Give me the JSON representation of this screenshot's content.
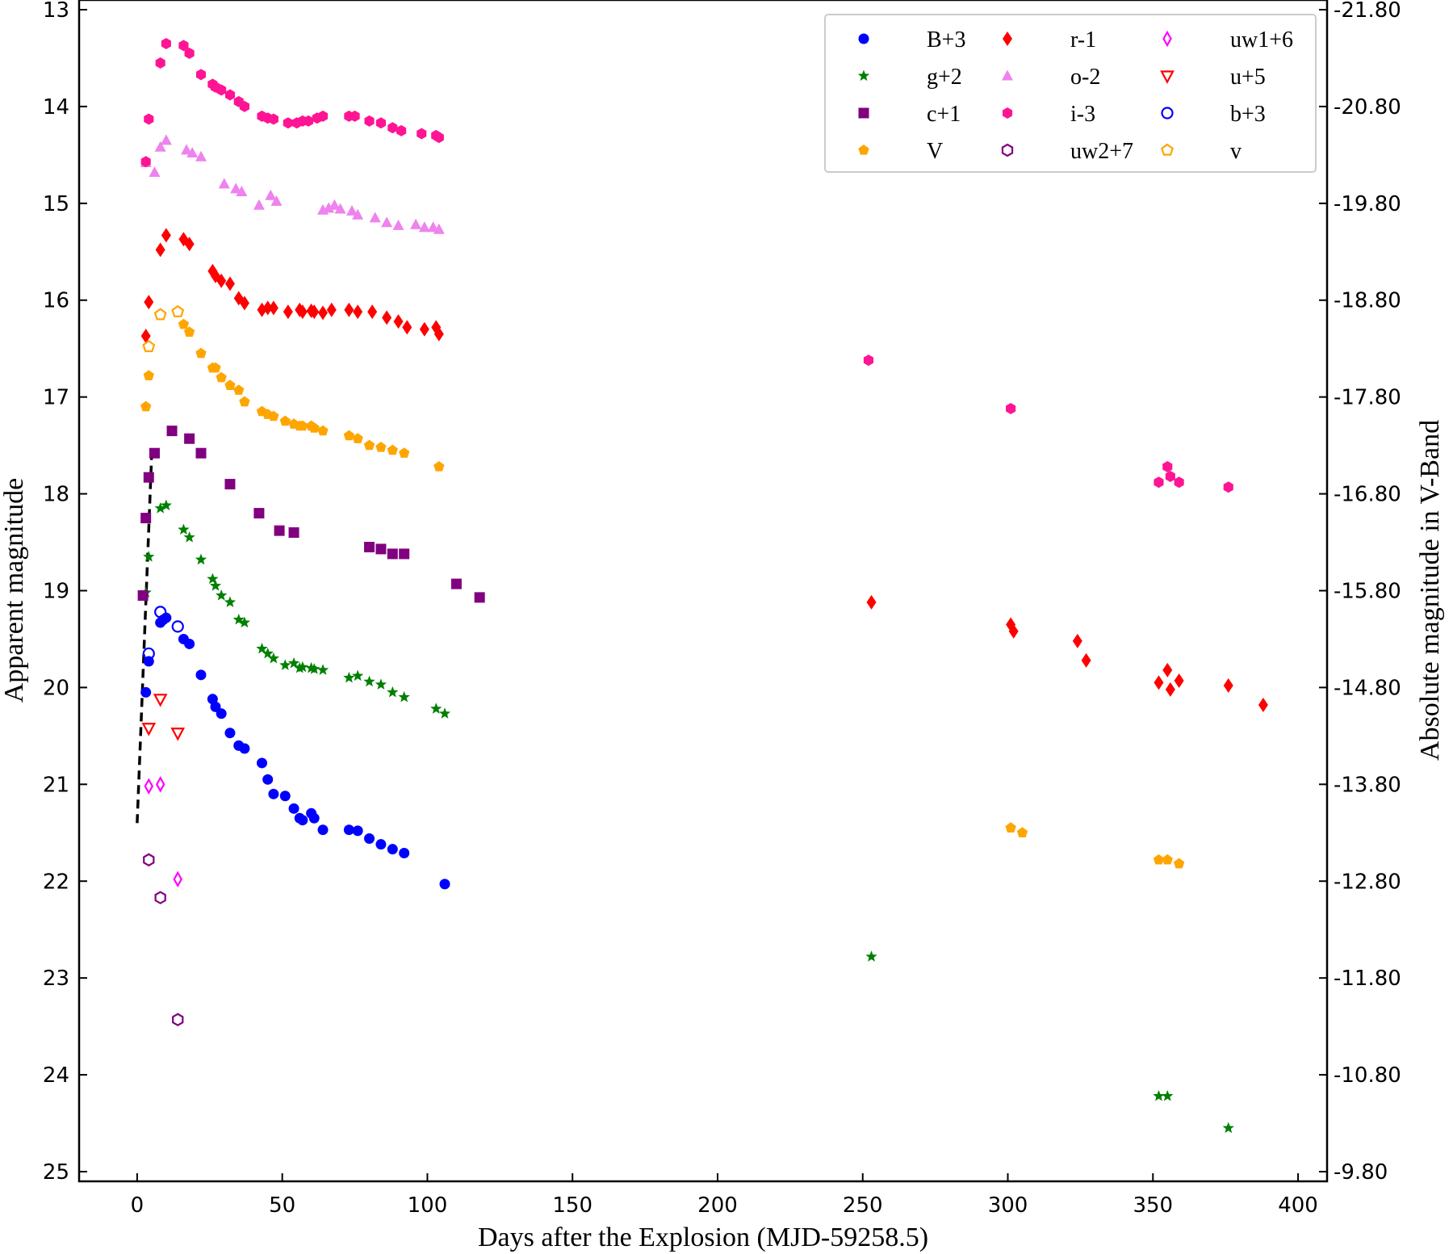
{
  "chart_data": {
    "type": "scatter",
    "xlabel": "Days after the Explosion (MJD-59258.5)",
    "ylabel": "Apparent magnitude",
    "y2label": "Absolute magnitude in V-Band",
    "xlim": [
      -20,
      410
    ],
    "ylim": [
      25.1,
      12.9
    ],
    "y_inverted": true,
    "x_ticks": [
      0,
      50,
      100,
      150,
      200,
      250,
      300,
      350,
      400
    ],
    "y_ticks": [
      13,
      14,
      15,
      16,
      17,
      18,
      19,
      20,
      21,
      22,
      23,
      24,
      25
    ],
    "y2_tick_labels": [
      "-21.80",
      "-20.80",
      "-19.80",
      "-18.80",
      "-17.80",
      "-16.80",
      "-15.80",
      "-14.80",
      "-13.80",
      "-12.80",
      "-11.80",
      "-10.80",
      "-9.80"
    ],
    "grid": false,
    "legend_position": "top-right",
    "legend_columns": 3,
    "colors": {
      "blue": "#0000ff",
      "green": "#008000",
      "purple": "#800080",
      "orange": "#ffa500",
      "red": "#ff0000",
      "violet": "#ee82ee",
      "pink": "#ff1493",
      "magenta": "#ff00ff"
    },
    "fit_line": {
      "style": "dashed",
      "color": "#000000",
      "points": [
        [
          0,
          21.4
        ],
        [
          5,
          17.6
        ]
      ]
    },
    "series": [
      {
        "name": "B+3",
        "marker": "circle",
        "filled": true,
        "color": "#0000ff",
        "points": [
          [
            3,
            20.05
          ],
          [
            4,
            19.73
          ],
          [
            8,
            19.33
          ],
          [
            9,
            19.3
          ],
          [
            10,
            19.28
          ],
          [
            16,
            19.5
          ],
          [
            18,
            19.55
          ],
          [
            22,
            19.87
          ],
          [
            26,
            20.12
          ],
          [
            27,
            20.2
          ],
          [
            29,
            20.27
          ],
          [
            32,
            20.47
          ],
          [
            35,
            20.6
          ],
          [
            37,
            20.63
          ],
          [
            43,
            20.78
          ],
          [
            45,
            20.95
          ],
          [
            47,
            21.1
          ],
          [
            51,
            21.12
          ],
          [
            54,
            21.25
          ],
          [
            56,
            21.35
          ],
          [
            57,
            21.37
          ],
          [
            60,
            21.3
          ],
          [
            61,
            21.35
          ],
          [
            64,
            21.47
          ],
          [
            73,
            21.47
          ],
          [
            76,
            21.48
          ],
          [
            80,
            21.56
          ],
          [
            84,
            21.62
          ],
          [
            88,
            21.67
          ],
          [
            92,
            21.71
          ],
          [
            106,
            22.03
          ]
        ]
      },
      {
        "name": "g+2",
        "marker": "star",
        "filled": true,
        "color": "#008000",
        "points": [
          [
            3,
            19.02
          ],
          [
            4,
            18.65
          ],
          [
            8,
            18.15
          ],
          [
            10,
            18.12
          ],
          [
            16,
            18.37
          ],
          [
            18,
            18.45
          ],
          [
            22,
            18.68
          ],
          [
            26,
            18.88
          ],
          [
            27,
            18.95
          ],
          [
            29,
            19.05
          ],
          [
            32,
            19.12
          ],
          [
            35,
            19.3
          ],
          [
            37,
            19.33
          ],
          [
            43,
            19.6
          ],
          [
            45,
            19.65
          ],
          [
            47,
            19.7
          ],
          [
            51,
            19.77
          ],
          [
            54,
            19.75
          ],
          [
            56,
            19.8
          ],
          [
            57,
            19.79
          ],
          [
            60,
            19.8
          ],
          [
            61,
            19.81
          ],
          [
            64,
            19.82
          ],
          [
            73,
            19.9
          ],
          [
            76,
            19.88
          ],
          [
            80,
            19.94
          ],
          [
            84,
            19.97
          ],
          [
            88,
            20.05
          ],
          [
            92,
            20.1
          ],
          [
            103,
            20.22
          ],
          [
            106,
            20.27
          ],
          [
            253,
            22.78
          ],
          [
            352,
            24.22
          ],
          [
            355,
            24.22
          ],
          [
            376,
            24.55
          ]
        ]
      },
      {
        "name": "c+1",
        "marker": "square",
        "filled": true,
        "color": "#800080",
        "points": [
          [
            2,
            19.05
          ],
          [
            3,
            18.25
          ],
          [
            4,
            17.83
          ],
          [
            6,
            17.58
          ],
          [
            12,
            17.35
          ],
          [
            18,
            17.43
          ],
          [
            22,
            17.58
          ],
          [
            32,
            17.9
          ],
          [
            42,
            18.2
          ],
          [
            49,
            18.38
          ],
          [
            54,
            18.4
          ],
          [
            80,
            18.55
          ],
          [
            84,
            18.57
          ],
          [
            88,
            18.62
          ],
          [
            92,
            18.62
          ],
          [
            110,
            18.93
          ],
          [
            118,
            19.07
          ]
        ]
      },
      {
        "name": "V",
        "marker": "pentagon",
        "filled": true,
        "color": "#ffa500",
        "points": [
          [
            3,
            17.1
          ],
          [
            4,
            16.78
          ],
          [
            16,
            16.25
          ],
          [
            18,
            16.33
          ],
          [
            22,
            16.55
          ],
          [
            26,
            16.7
          ],
          [
            27,
            16.7
          ],
          [
            29,
            16.8
          ],
          [
            32,
            16.88
          ],
          [
            35,
            16.93
          ],
          [
            37,
            17.05
          ],
          [
            43,
            17.15
          ],
          [
            45,
            17.18
          ],
          [
            47,
            17.2
          ],
          [
            51,
            17.25
          ],
          [
            54,
            17.28
          ],
          [
            56,
            17.3
          ],
          [
            57,
            17.3
          ],
          [
            60,
            17.3
          ],
          [
            61,
            17.32
          ],
          [
            64,
            17.35
          ],
          [
            73,
            17.4
          ],
          [
            76,
            17.43
          ],
          [
            80,
            17.5
          ],
          [
            84,
            17.52
          ],
          [
            88,
            17.55
          ],
          [
            92,
            17.58
          ],
          [
            104,
            17.72
          ],
          [
            301,
            21.45
          ],
          [
            305,
            21.5
          ],
          [
            352,
            21.78
          ],
          [
            355,
            21.78
          ],
          [
            359,
            21.82
          ]
        ]
      },
      {
        "name": "r-1",
        "marker": "diamond",
        "filled": true,
        "color": "#ff0000",
        "points": [
          [
            3,
            16.37
          ],
          [
            4,
            16.02
          ],
          [
            8,
            15.48
          ],
          [
            10,
            15.33
          ],
          [
            16,
            15.37
          ],
          [
            18,
            15.42
          ],
          [
            26,
            15.7
          ],
          [
            27,
            15.75
          ],
          [
            29,
            15.8
          ],
          [
            32,
            15.83
          ],
          [
            35,
            15.98
          ],
          [
            37,
            16.03
          ],
          [
            43,
            16.1
          ],
          [
            45,
            16.08
          ],
          [
            47,
            16.08
          ],
          [
            52,
            16.12
          ],
          [
            56,
            16.1
          ],
          [
            57,
            16.12
          ],
          [
            60,
            16.11
          ],
          [
            61,
            16.12
          ],
          [
            64,
            16.13
          ],
          [
            67,
            16.1
          ],
          [
            73,
            16.1
          ],
          [
            76,
            16.12
          ],
          [
            81,
            16.12
          ],
          [
            86,
            16.18
          ],
          [
            90,
            16.22
          ],
          [
            93,
            16.28
          ],
          [
            99,
            16.3
          ],
          [
            103,
            16.28
          ],
          [
            104,
            16.35
          ],
          [
            253,
            19.12
          ],
          [
            301,
            19.35
          ],
          [
            302,
            19.42
          ],
          [
            324,
            19.52
          ],
          [
            327,
            19.72
          ],
          [
            352,
            19.95
          ],
          [
            355,
            19.82
          ],
          [
            356,
            20.02
          ],
          [
            359,
            19.93
          ],
          [
            376,
            19.98
          ],
          [
            388,
            20.18
          ]
        ]
      },
      {
        "name": "o-2",
        "marker": "triangle-up",
        "filled": true,
        "color": "#ee82ee",
        "points": [
          [
            3,
            14.58
          ],
          [
            6,
            14.68
          ],
          [
            8,
            14.42
          ],
          [
            10,
            14.35
          ],
          [
            17,
            14.45
          ],
          [
            19,
            14.48
          ],
          [
            22,
            14.52
          ],
          [
            30,
            14.8
          ],
          [
            34,
            14.85
          ],
          [
            36,
            14.88
          ],
          [
            42,
            15.02
          ],
          [
            46,
            14.92
          ],
          [
            48,
            14.98
          ],
          [
            64,
            15.07
          ],
          [
            66,
            15.05
          ],
          [
            68,
            15.02
          ],
          [
            70,
            15.06
          ],
          [
            74,
            15.08
          ],
          [
            76,
            15.12
          ],
          [
            82,
            15.15
          ],
          [
            86,
            15.2
          ],
          [
            90,
            15.23
          ],
          [
            96,
            15.22
          ],
          [
            99,
            15.25
          ],
          [
            102,
            15.25
          ],
          [
            104,
            15.27
          ]
        ]
      },
      {
        "name": "i-3",
        "marker": "hexagon",
        "filled": true,
        "color": "#ff1493",
        "points": [
          [
            3,
            14.57
          ],
          [
            4,
            14.13
          ],
          [
            8,
            13.55
          ],
          [
            10,
            13.35
          ],
          [
            16,
            13.37
          ],
          [
            18,
            13.45
          ],
          [
            22,
            13.67
          ],
          [
            26,
            13.77
          ],
          [
            27,
            13.8
          ],
          [
            29,
            13.83
          ],
          [
            32,
            13.88
          ],
          [
            35,
            13.95
          ],
          [
            37,
            14
          ],
          [
            43,
            14.1
          ],
          [
            45,
            14.12
          ],
          [
            47,
            14.13
          ],
          [
            52,
            14.17
          ],
          [
            55,
            14.17
          ],
          [
            57,
            14.15
          ],
          [
            59,
            14.15
          ],
          [
            62,
            14.12
          ],
          [
            64,
            14.1
          ],
          [
            73,
            14.1
          ],
          [
            75,
            14.1
          ],
          [
            80,
            14.15
          ],
          [
            84,
            14.17
          ],
          [
            88,
            14.22
          ],
          [
            91,
            14.25
          ],
          [
            98,
            14.28
          ],
          [
            103,
            14.3
          ],
          [
            104,
            14.32
          ],
          [
            252,
            16.62
          ],
          [
            301,
            17.12
          ],
          [
            352,
            17.88
          ],
          [
            355,
            17.72
          ],
          [
            356,
            17.82
          ],
          [
            359,
            17.88
          ],
          [
            376,
            17.93
          ]
        ]
      },
      {
        "name": "uw2+7",
        "marker": "hexagon",
        "filled": false,
        "color": "#800080",
        "points": [
          [
            4,
            21.78
          ],
          [
            8,
            22.17
          ],
          [
            14,
            23.43
          ]
        ]
      },
      {
        "name": "uw1+6",
        "marker": "thin-diamond",
        "filled": false,
        "color": "#ff00ff",
        "points": [
          [
            4,
            21.02
          ],
          [
            8,
            21
          ],
          [
            14,
            21.98
          ]
        ]
      },
      {
        "name": "u+5",
        "marker": "triangle-down",
        "filled": false,
        "color": "#ff0000",
        "points": [
          [
            4,
            20.42
          ],
          [
            8,
            20.12
          ],
          [
            14,
            20.47
          ]
        ]
      },
      {
        "name": "b+3",
        "marker": "circle",
        "filled": false,
        "color": "#0000ff",
        "points": [
          [
            4,
            19.65
          ],
          [
            8,
            19.22
          ],
          [
            14,
            19.37
          ]
        ]
      },
      {
        "name": "v",
        "marker": "pentagon",
        "filled": false,
        "color": "#ffa500",
        "points": [
          [
            4,
            16.48
          ],
          [
            8,
            16.15
          ],
          [
            14,
            16.12
          ]
        ]
      }
    ],
    "legend_order": [
      "B+3",
      "g+2",
      "c+1",
      "V",
      "r-1",
      "o-2",
      "i-3",
      "uw2+7",
      "uw1+6",
      "u+5",
      "b+3",
      "v"
    ]
  }
}
